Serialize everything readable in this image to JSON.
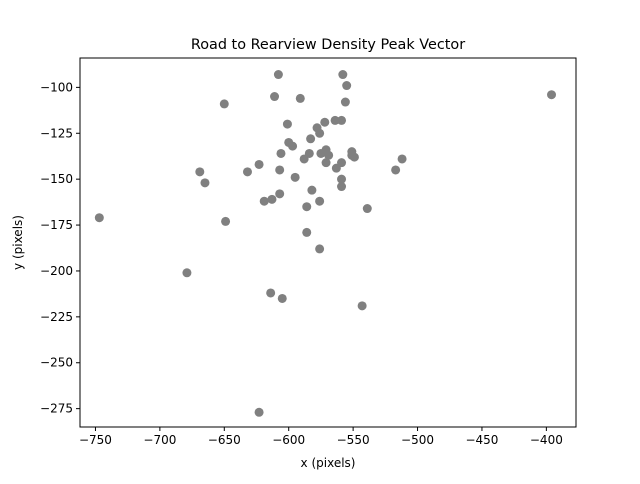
{
  "chart_data": {
    "type": "scatter",
    "title": "Road to Rearview Density Peak Vector",
    "xlabel": "x (pixels)",
    "ylabel": "y (pixels)",
    "xlim": [
      -762,
      -377
    ],
    "ylim": [
      -285,
      -84
    ],
    "xticks": [
      -750,
      -700,
      -650,
      -600,
      -550,
      -500,
      -450,
      -400
    ],
    "yticks": [
      -100,
      -125,
      -150,
      -175,
      -200,
      -225,
      -250,
      -275
    ],
    "xtick_labels": [
      "−750",
      "−700",
      "−650",
      "−600",
      "−550",
      "−500",
      "−450",
      "−400"
    ],
    "ytick_labels": [
      "−100",
      "−125",
      "−150",
      "−175",
      "−200",
      "−225",
      "−250",
      "−275"
    ],
    "grid": false,
    "marker_color": "#808080",
    "series": [
      {
        "points": [
          [
            -608,
            -93
          ],
          [
            -558,
            -93
          ],
          [
            -555,
            -99
          ],
          [
            -396,
            -104
          ],
          [
            -611,
            -105
          ],
          [
            -591,
            -106
          ],
          [
            -650,
            -109
          ],
          [
            -556,
            -108
          ],
          [
            -564,
            -118
          ],
          [
            -559,
            -118
          ],
          [
            -572,
            -119
          ],
          [
            -601,
            -120
          ],
          [
            -578,
            -122
          ],
          [
            -576,
            -125
          ],
          [
            -583,
            -128
          ],
          [
            -600,
            -130
          ],
          [
            -597,
            -132
          ],
          [
            -571,
            -134
          ],
          [
            -551,
            -135
          ],
          [
            -606,
            -136
          ],
          [
            -584,
            -136
          ],
          [
            -575,
            -136
          ],
          [
            -569,
            -137
          ],
          [
            -551,
            -137
          ],
          [
            -549,
            -138
          ],
          [
            -588,
            -139
          ],
          [
            -512,
            -139
          ],
          [
            -559,
            -141
          ],
          [
            -571,
            -141
          ],
          [
            -623,
            -142
          ],
          [
            -563,
            -144
          ],
          [
            -607,
            -145
          ],
          [
            -517,
            -145
          ],
          [
            -632,
            -146
          ],
          [
            -669,
            -146
          ],
          [
            -595,
            -149
          ],
          [
            -559,
            -150
          ],
          [
            -665,
            -152
          ],
          [
            -559,
            -154
          ],
          [
            -582,
            -156
          ],
          [
            -607,
            -158
          ],
          [
            -613,
            -161
          ],
          [
            -619,
            -162
          ],
          [
            -576,
            -162
          ],
          [
            -586,
            -165
          ],
          [
            -539,
            -166
          ],
          [
            -747,
            -171
          ],
          [
            -649,
            -173
          ],
          [
            -586,
            -179
          ],
          [
            -576,
            -188
          ],
          [
            -679,
            -201
          ],
          [
            -614,
            -212
          ],
          [
            -605,
            -215
          ],
          [
            -543,
            -219
          ],
          [
            -623,
            -277
          ]
        ]
      }
    ]
  }
}
